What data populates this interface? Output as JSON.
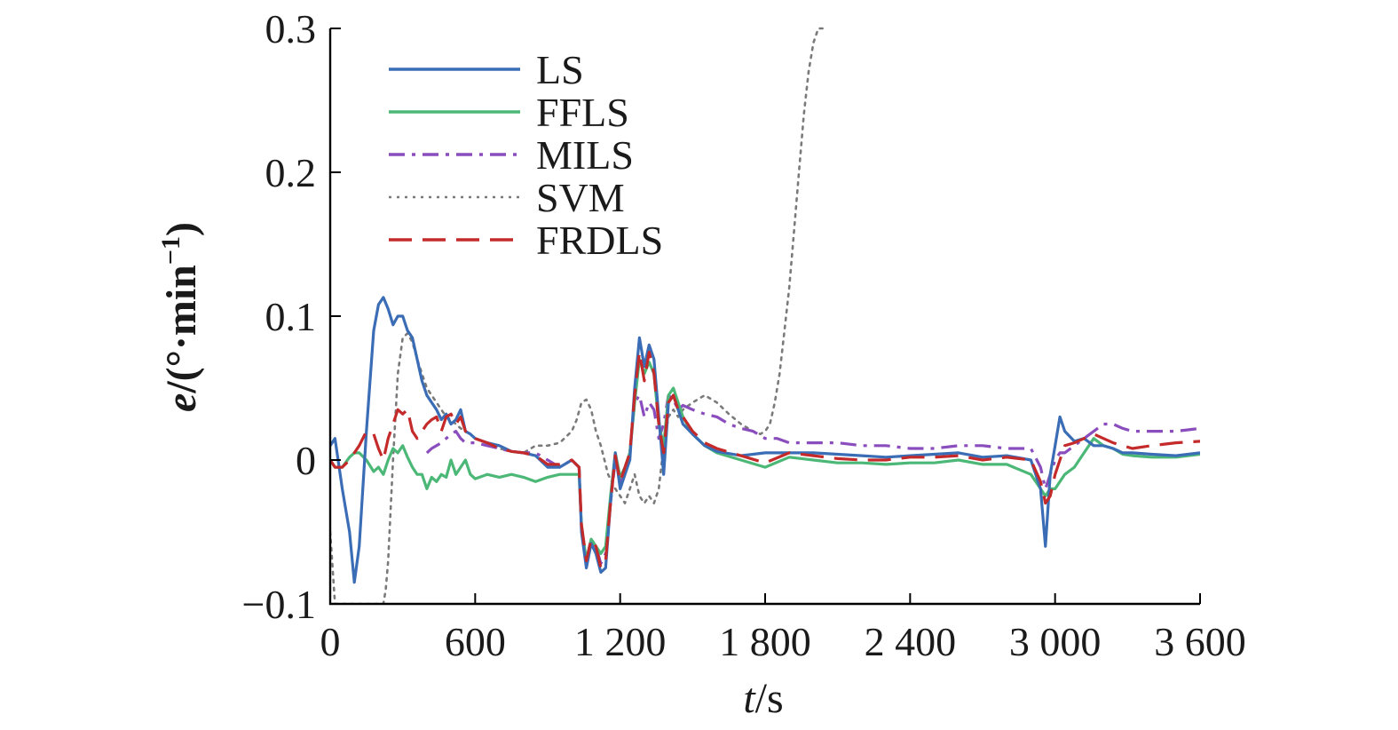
{
  "chart_data": {
    "type": "line",
    "xlabel_italic": "t",
    "xlabel_rest": "/s",
    "ylabel_italic": "e",
    "ylabel_rest": "/(°·min",
    "ylabel_sup": "−1",
    "ylabel_close": ")",
    "xlim": [
      0,
      3600
    ],
    "ylim": [
      -0.1,
      0.3
    ],
    "xticks": [
      0,
      600,
      1200,
      1800,
      2400,
      3000,
      3600
    ],
    "xtick_labels": [
      "0",
      "600",
      "1 200",
      "1 800",
      "2 400",
      "3 000",
      "3 600"
    ],
    "yticks": [
      -0.1,
      0,
      0.1,
      0.2,
      0.3
    ],
    "ytick_labels": [
      "−0.1",
      "0",
      "0.1",
      "0.2",
      "0.3"
    ],
    "grid": false,
    "legend_position": "top-left",
    "series": [
      {
        "name": "LS",
        "color": "#3a6db5",
        "style": "solid",
        "x": [
          0,
          20,
          50,
          80,
          100,
          120,
          150,
          180,
          200,
          220,
          240,
          260,
          280,
          300,
          320,
          340,
          360,
          380,
          400,
          420,
          440,
          460,
          480,
          500,
          520,
          540,
          560,
          580,
          600,
          650,
          700,
          750,
          800,
          850,
          900,
          950,
          1000,
          1030,
          1040,
          1060,
          1080,
          1100,
          1120,
          1140,
          1160,
          1180,
          1200,
          1220,
          1240,
          1260,
          1280,
          1300,
          1320,
          1340,
          1360,
          1380,
          1400,
          1420,
          1440,
          1460,
          1500,
          1550,
          1600,
          1700,
          1800,
          1900,
          2000,
          2100,
          2200,
          2300,
          2400,
          2500,
          2600,
          2700,
          2800,
          2900,
          2940,
          2960,
          2970,
          2980,
          3000,
          3020,
          3040,
          3080,
          3120,
          3160,
          3200,
          3240,
          3280,
          3320,
          3400,
          3500,
          3600
        ],
        "y": [
          0.01,
          0.015,
          -0.02,
          -0.05,
          -0.085,
          -0.06,
          0.02,
          0.09,
          0.108,
          0.113,
          0.105,
          0.094,
          0.1,
          0.1,
          0.09,
          0.085,
          0.07,
          0.055,
          0.045,
          0.04,
          0.035,
          0.028,
          0.032,
          0.025,
          0.028,
          0.035,
          0.02,
          0.018,
          0.015,
          0.012,
          0.01,
          0.006,
          0.005,
          0.003,
          -0.005,
          -0.005,
          0.0,
          -0.005,
          -0.05,
          -0.075,
          -0.058,
          -0.065,
          -0.078,
          -0.075,
          -0.03,
          0.005,
          -0.02,
          -0.01,
          0.0,
          0.05,
          0.085,
          0.065,
          0.08,
          0.07,
          0.03,
          -0.01,
          0.04,
          0.045,
          0.035,
          0.025,
          0.018,
          0.01,
          0.006,
          0.003,
          0.005,
          0.005,
          0.005,
          0.004,
          0.003,
          0.002,
          0.003,
          0.004,
          0.005,
          0.002,
          0.003,
          0.0,
          -0.02,
          -0.06,
          -0.035,
          -0.01,
          0.01,
          0.03,
          0.02,
          0.013,
          0.015,
          0.01,
          0.01,
          0.008,
          0.005,
          0.005,
          0.004,
          0.003,
          0.005
        ]
      },
      {
        "name": "FFLS",
        "color": "#4cb877",
        "style": "solid",
        "x": [
          0,
          20,
          50,
          80,
          100,
          120,
          150,
          180,
          200,
          220,
          240,
          260,
          280,
          300,
          320,
          340,
          360,
          380,
          400,
          420,
          440,
          460,
          480,
          500,
          520,
          540,
          560,
          580,
          600,
          650,
          700,
          750,
          800,
          850,
          900,
          950,
          1000,
          1030,
          1040,
          1060,
          1080,
          1100,
          1120,
          1140,
          1160,
          1180,
          1200,
          1220,
          1240,
          1260,
          1280,
          1300,
          1320,
          1340,
          1360,
          1380,
          1400,
          1420,
          1440,
          1460,
          1500,
          1550,
          1600,
          1700,
          1800,
          1900,
          2000,
          2100,
          2200,
          2300,
          2400,
          2500,
          2600,
          2700,
          2800,
          2900,
          2940,
          2960,
          2980,
          3000,
          3020,
          3040,
          3080,
          3120,
          3160,
          3200,
          3240,
          3280,
          3320,
          3400,
          3500,
          3600
        ],
        "y": [
          0.0,
          -0.005,
          -0.005,
          0.002,
          0.005,
          0.005,
          0.0,
          -0.008,
          -0.005,
          -0.01,
          0.0,
          0.008,
          0.005,
          0.01,
          0.002,
          -0.005,
          -0.01,
          -0.01,
          -0.02,
          -0.012,
          -0.015,
          -0.01,
          -0.012,
          0.0,
          -0.01,
          -0.005,
          0.0,
          -0.01,
          -0.013,
          -0.01,
          -0.012,
          -0.01,
          -0.012,
          -0.015,
          -0.012,
          -0.01,
          -0.01,
          -0.01,
          -0.045,
          -0.07,
          -0.055,
          -0.06,
          -0.065,
          -0.06,
          -0.025,
          0.005,
          -0.012,
          -0.005,
          0.005,
          0.04,
          0.07,
          0.06,
          0.068,
          0.06,
          0.025,
          0.01,
          0.045,
          0.05,
          0.04,
          0.03,
          0.018,
          0.01,
          0.005,
          0.0,
          -0.005,
          0.002,
          0.0,
          -0.002,
          -0.002,
          -0.003,
          -0.002,
          -0.002,
          0.0,
          -0.003,
          -0.003,
          -0.01,
          -0.02,
          -0.025,
          -0.02,
          -0.02,
          -0.015,
          -0.01,
          -0.005,
          0.005,
          0.015,
          0.01,
          0.008,
          0.004,
          0.003,
          0.002,
          0.002,
          0.004
        ]
      },
      {
        "name": "MILS",
        "color": "#8a4dbd",
        "style": "dashdot",
        "x": [
          400,
          420,
          440,
          460,
          480,
          500,
          520,
          540,
          560,
          580,
          600,
          650,
          700,
          750,
          800,
          850,
          900,
          950,
          1000,
          1030,
          1040,
          1060,
          1080,
          1100,
          1120,
          1140,
          1160,
          1180,
          1200,
          1220,
          1240,
          1260,
          1280,
          1300,
          1320,
          1340,
          1360,
          1380,
          1400,
          1420,
          1440,
          1460,
          1500,
          1550,
          1600,
          1650,
          1700,
          1750,
          1800,
          1850,
          1900,
          2000,
          2100,
          2200,
          2300,
          2400,
          2500,
          2600,
          2700,
          2800,
          2900,
          2940,
          2960,
          2980,
          3000,
          3020,
          3040,
          3080,
          3120,
          3160,
          3200,
          3240,
          3280,
          3320,
          3400,
          3500,
          3600
        ],
        "y": [
          0.005,
          0.008,
          0.01,
          0.012,
          0.015,
          0.018,
          0.02,
          0.015,
          0.012,
          0.012,
          0.012,
          0.01,
          0.008,
          0.006,
          0.005,
          0.005,
          0.0,
          -0.005,
          0.0,
          -0.005,
          -0.048,
          -0.07,
          -0.055,
          -0.06,
          -0.072,
          -0.065,
          -0.03,
          0.0,
          -0.015,
          -0.005,
          0.005,
          0.04,
          0.045,
          0.03,
          0.04,
          0.035,
          0.015,
          0.025,
          0.045,
          0.042,
          0.035,
          0.038,
          0.035,
          0.032,
          0.03,
          0.025,
          0.022,
          0.02,
          0.015,
          0.015,
          0.012,
          0.012,
          0.012,
          0.01,
          0.01,
          0.008,
          0.008,
          0.01,
          0.01,
          0.008,
          0.008,
          -0.005,
          -0.02,
          -0.01,
          0.0,
          0.005,
          0.005,
          0.01,
          0.015,
          0.02,
          0.025,
          0.025,
          0.022,
          0.02,
          0.02,
          0.02,
          0.022
        ]
      },
      {
        "name": "SVM",
        "color": "#7a7a7a",
        "style": "dotted",
        "x": [
          0,
          20,
          40,
          60,
          80,
          100,
          120,
          140,
          160,
          180,
          200,
          220,
          230,
          240,
          260,
          280,
          300,
          320,
          340,
          360,
          380,
          400,
          420,
          440,
          460,
          480,
          500,
          520,
          540,
          560,
          580,
          600,
          650,
          700,
          750,
          800,
          850,
          900,
          950,
          1000,
          1020,
          1040,
          1060,
          1080,
          1100,
          1120,
          1150,
          1180,
          1200,
          1220,
          1240,
          1260,
          1280,
          1300,
          1320,
          1340,
          1360,
          1380,
          1400,
          1420,
          1440,
          1460,
          1500,
          1550,
          1600,
          1650,
          1700,
          1750,
          1780,
          1800,
          1820,
          1840,
          1860,
          1880,
          1900,
          1920,
          1940,
          1960,
          1980,
          2000,
          2020,
          2040
        ],
        "y": [
          -0.05,
          -0.1,
          -0.1,
          -0.1,
          -0.1,
          -0.1,
          -0.1,
          -0.1,
          -0.1,
          -0.1,
          -0.1,
          -0.1,
          -0.09,
          -0.07,
          0.0,
          0.06,
          0.085,
          0.088,
          0.082,
          0.07,
          0.06,
          0.05,
          0.045,
          0.04,
          0.035,
          0.03,
          0.028,
          0.025,
          0.022,
          0.02,
          0.018,
          0.015,
          0.012,
          0.008,
          0.006,
          0.005,
          0.01,
          0.01,
          0.012,
          0.02,
          0.028,
          0.04,
          0.042,
          0.035,
          0.02,
          0.01,
          -0.01,
          -0.02,
          -0.025,
          -0.03,
          -0.02,
          -0.01,
          -0.025,
          -0.03,
          -0.025,
          -0.03,
          -0.02,
          0.01,
          0.03,
          0.035,
          0.03,
          0.035,
          0.04,
          0.045,
          0.04,
          0.032,
          0.025,
          0.02,
          0.018,
          0.02,
          0.025,
          0.04,
          0.06,
          0.09,
          0.12,
          0.16,
          0.2,
          0.24,
          0.27,
          0.29,
          0.3,
          0.3
        ]
      },
      {
        "name": "FRDLS",
        "color": "#c42a2a",
        "style": "dashed",
        "x": [
          0,
          20,
          50,
          80,
          100,
          120,
          150,
          180,
          200,
          220,
          240,
          260,
          280,
          300,
          320,
          340,
          360,
          380,
          400,
          420,
          440,
          460,
          480,
          500,
          520,
          540,
          560,
          580,
          600,
          650,
          700,
          750,
          800,
          850,
          900,
          950,
          1000,
          1030,
          1040,
          1060,
          1080,
          1100,
          1120,
          1140,
          1160,
          1180,
          1200,
          1220,
          1240,
          1260,
          1280,
          1300,
          1320,
          1340,
          1360,
          1380,
          1400,
          1420,
          1440,
          1460,
          1500,
          1550,
          1600,
          1700,
          1800,
          1900,
          2000,
          2100,
          2200,
          2300,
          2400,
          2500,
          2600,
          2700,
          2800,
          2900,
          2940,
          2960,
          2980,
          3000,
          3020,
          3040,
          3080,
          3120,
          3160,
          3200,
          3240,
          3280,
          3320,
          3400,
          3500,
          3600
        ],
        "y": [
          0.0,
          -0.005,
          -0.005,
          0.0,
          0.005,
          0.01,
          0.02,
          0.018,
          0.008,
          0.0,
          0.015,
          0.025,
          0.035,
          0.032,
          0.035,
          0.02,
          0.015,
          0.02,
          0.025,
          0.028,
          0.03,
          0.02,
          0.03,
          0.032,
          0.025,
          0.03,
          0.02,
          0.018,
          0.015,
          0.012,
          0.008,
          0.006,
          0.005,
          0.003,
          -0.003,
          -0.003,
          0.0,
          -0.005,
          -0.045,
          -0.07,
          -0.055,
          -0.06,
          -0.075,
          -0.07,
          -0.03,
          0.003,
          -0.015,
          -0.005,
          0.005,
          0.045,
          0.075,
          0.055,
          0.075,
          0.06,
          0.025,
          0.005,
          0.04,
          0.045,
          0.035,
          0.03,
          0.02,
          0.012,
          0.008,
          0.003,
          -0.002,
          0.005,
          0.003,
          0.001,
          0.0,
          0.0,
          0.002,
          0.002,
          0.003,
          0.0,
          0.002,
          0.0,
          -0.015,
          -0.03,
          -0.025,
          -0.01,
          0.0,
          0.01,
          0.012,
          0.015,
          0.018,
          0.015,
          0.012,
          0.01,
          0.008,
          0.01,
          0.012,
          0.013
        ]
      }
    ]
  }
}
